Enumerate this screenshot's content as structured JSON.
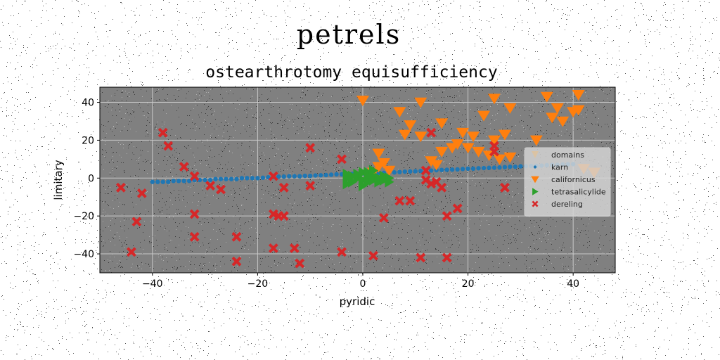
{
  "chart_data": {
    "type": "scatter",
    "suptitle": "petrels",
    "title": "ostearthrotomy equisufficiency",
    "xlabel": "pyridic",
    "ylabel": "limitary",
    "xlim": [
      -50,
      48
    ],
    "ylim": [
      -50,
      48
    ],
    "xticks": [
      -40,
      -20,
      0,
      20,
      40
    ],
    "yticks": [
      -40,
      -20,
      0,
      20,
      40
    ],
    "xtick_labels": [
      "−40",
      "−20",
      "0",
      "20",
      "40"
    ],
    "ytick_labels": [
      "−40",
      "−20",
      "0",
      "20",
      "40"
    ],
    "grid": true,
    "background": "#808080",
    "legend_position": "center-right",
    "series": [
      {
        "name": "domains",
        "marker": "none",
        "color": "#ffffff",
        "points": []
      },
      {
        "name": "karn",
        "marker": "circle",
        "color": "#1f77b4",
        "points": [
          [
            -40,
            -2
          ],
          [
            -39,
            -2
          ],
          [
            -38,
            -2
          ],
          [
            -37,
            -2
          ],
          [
            -36,
            -1.5
          ],
          [
            -35,
            -1.5
          ],
          [
            -34,
            -1.5
          ],
          [
            -33,
            -1.5
          ],
          [
            -32,
            -1
          ],
          [
            -31,
            -1
          ],
          [
            -30,
            -1
          ],
          [
            -29,
            -1
          ],
          [
            -28,
            -0.5
          ],
          [
            -27,
            -0.5
          ],
          [
            -26,
            -0.5
          ],
          [
            -25,
            -0.5
          ],
          [
            -24,
            -0.5
          ],
          [
            -23,
            0
          ],
          [
            -22,
            0
          ],
          [
            -21,
            0
          ],
          [
            -20,
            0
          ],
          [
            -19,
            0.2
          ],
          [
            -18,
            0.4
          ],
          [
            -17,
            0.6
          ],
          [
            -16,
            0.8
          ],
          [
            -15,
            0.8
          ],
          [
            -14,
            1
          ],
          [
            -13,
            1
          ],
          [
            -12,
            1
          ],
          [
            -11,
            1.2
          ],
          [
            -10,
            1.2
          ],
          [
            -9,
            1.4
          ],
          [
            -8,
            1.5
          ],
          [
            -7,
            1.6
          ],
          [
            -6,
            1.8
          ],
          [
            -5,
            2
          ],
          [
            -4,
            2
          ],
          [
            -3,
            2
          ],
          [
            -2,
            2.2
          ],
          [
            -1,
            2.3
          ],
          [
            0,
            2.5
          ],
          [
            1,
            2.5
          ],
          [
            2,
            2.6
          ],
          [
            3,
            2.7
          ],
          [
            4,
            2.8
          ],
          [
            5,
            3
          ],
          [
            6,
            3
          ],
          [
            7,
            3.2
          ],
          [
            8,
            3.4
          ],
          [
            9,
            3.5
          ],
          [
            10,
            3.6
          ],
          [
            11,
            3.8
          ],
          [
            12,
            4
          ],
          [
            13,
            4
          ],
          [
            14,
            4.2
          ],
          [
            15,
            4.3
          ],
          [
            16,
            4.4
          ],
          [
            17,
            4.5
          ],
          [
            18,
            4.6
          ],
          [
            19,
            4.8
          ],
          [
            20,
            5
          ],
          [
            21,
            5
          ],
          [
            22,
            5.2
          ],
          [
            23,
            5.3
          ],
          [
            24,
            5.4
          ],
          [
            25,
            5.5
          ],
          [
            26,
            5.6
          ],
          [
            27,
            5.8
          ],
          [
            28,
            6
          ],
          [
            29,
            6
          ],
          [
            30,
            6.2
          ],
          [
            31,
            6.3
          ],
          [
            32,
            6.4
          ],
          [
            33,
            6.5
          ],
          [
            34,
            6.6
          ],
          [
            35,
            6.8
          ],
          [
            36,
            7
          ],
          [
            37,
            7
          ],
          [
            38,
            7.2
          ],
          [
            39,
            7.3
          ],
          [
            40,
            7.4
          ]
        ]
      },
      {
        "name": "californicus",
        "marker": "triangle-down",
        "color": "#ff7f0e",
        "points": [
          [
            0,
            41
          ],
          [
            11,
            40
          ],
          [
            3,
            13
          ],
          [
            7,
            35
          ],
          [
            8,
            23
          ],
          [
            9,
            28
          ],
          [
            11,
            22
          ],
          [
            13,
            9
          ],
          [
            15,
            29
          ],
          [
            17,
            16
          ],
          [
            19,
            24
          ],
          [
            18,
            18
          ],
          [
            21,
            22
          ],
          [
            22,
            14
          ],
          [
            23,
            33
          ],
          [
            24,
            12
          ],
          [
            25,
            42
          ],
          [
            25,
            20
          ],
          [
            27,
            23
          ],
          [
            28,
            37
          ],
          [
            28,
            11
          ],
          [
            33,
            20
          ],
          [
            35,
            43
          ],
          [
            37,
            37
          ],
          [
            36,
            32
          ],
          [
            38,
            30
          ],
          [
            40,
            35
          ],
          [
            41,
            44
          ],
          [
            41,
            36
          ],
          [
            42,
            5
          ],
          [
            44,
            3
          ],
          [
            5,
            4
          ],
          [
            15,
            14
          ],
          [
            20,
            16
          ],
          [
            26,
            10
          ],
          [
            14,
            7
          ],
          [
            3,
            6
          ],
          [
            2,
            3
          ],
          [
            4,
            8
          ]
        ]
      },
      {
        "name": "tetrasalicylide",
        "marker": "triangle-right",
        "color": "#2ca02c",
        "points": [
          [
            -3,
            0
          ],
          [
            -2,
            1
          ],
          [
            -2,
            -2
          ],
          [
            -1,
            0
          ],
          [
            -1,
            2
          ],
          [
            0,
            -1
          ],
          [
            0,
            3
          ],
          [
            1,
            0
          ],
          [
            1,
            -2
          ],
          [
            1,
            3
          ],
          [
            2,
            1
          ],
          [
            2,
            -1
          ],
          [
            2,
            4
          ],
          [
            3,
            0
          ],
          [
            3,
            -2
          ],
          [
            4,
            1
          ],
          [
            4,
            -1
          ],
          [
            5,
            0
          ],
          [
            -3,
            2
          ],
          [
            -3,
            -3
          ],
          [
            0,
            -4
          ],
          [
            1,
            1
          ],
          [
            5,
            -2
          ]
        ]
      },
      {
        "name": "dereling",
        "marker": "x",
        "color": "#d62728",
        "points": [
          [
            -46,
            -5
          ],
          [
            -44,
            -39
          ],
          [
            -43,
            -23
          ],
          [
            -42,
            -8
          ],
          [
            -38,
            24
          ],
          [
            -37,
            17
          ],
          [
            -34,
            6
          ],
          [
            -32,
            1
          ],
          [
            -32,
            -19
          ],
          [
            -32,
            -31
          ],
          [
            -29,
            -4
          ],
          [
            -27,
            -6
          ],
          [
            -24,
            -31
          ],
          [
            -24,
            -44
          ],
          [
            -17,
            1
          ],
          [
            -17,
            -19
          ],
          [
            -17,
            -37
          ],
          [
            -16,
            -20
          ],
          [
            -15,
            -20
          ],
          [
            -15,
            -5
          ],
          [
            -13,
            -37
          ],
          [
            -12,
            -45
          ],
          [
            -10,
            16
          ],
          [
            -10,
            -4
          ],
          [
            -4,
            10
          ],
          [
            -4,
            -39
          ],
          [
            2,
            -41
          ],
          [
            4,
            -21
          ],
          [
            7,
            -12
          ],
          [
            9,
            -12
          ],
          [
            11,
            -42
          ],
          [
            12,
            4
          ],
          [
            12,
            -1
          ],
          [
            13,
            24
          ],
          [
            13,
            -3
          ],
          [
            14,
            -2
          ],
          [
            15,
            -5
          ],
          [
            16,
            -20
          ],
          [
            16,
            -42
          ],
          [
            18,
            -16
          ],
          [
            25,
            17
          ],
          [
            25,
            14
          ],
          [
            27,
            -5
          ]
        ]
      }
    ]
  }
}
